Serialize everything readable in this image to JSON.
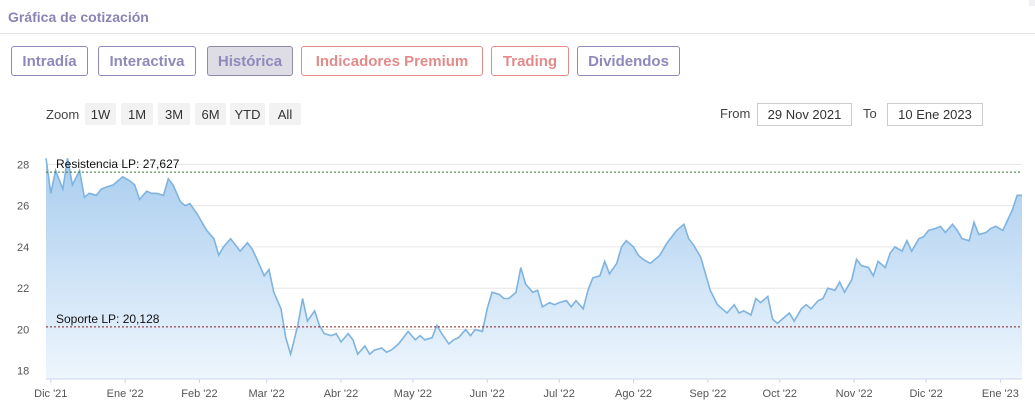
{
  "panel": {
    "title": "Gráfica de cotización"
  },
  "tabs": [
    {
      "label": "Intradía",
      "kind": "normal"
    },
    {
      "label": "Interactiva",
      "kind": "normal"
    },
    {
      "label": "Histórica",
      "kind": "active"
    },
    {
      "label": "Indicadores Premium",
      "kind": "premium"
    },
    {
      "label": "Trading",
      "kind": "premium"
    },
    {
      "label": "Dividendos",
      "kind": "normal"
    }
  ],
  "zoom": {
    "label": "Zoom",
    "options": [
      "1W",
      "1M",
      "3M",
      "6M",
      "YTD",
      "All"
    ]
  },
  "range": {
    "from_label": "From",
    "from_value": "29 Nov 2021",
    "to_label": "To",
    "to_value": "10 Ene 2023"
  },
  "colors": {
    "tab_border": "#8f89bb",
    "tab_premium": "#e38b8b",
    "series_line": "#7fb3e0",
    "area_top": "#a9cdef",
    "area_bottom": "#eef6fd",
    "resistance_line": "#2f7a2f",
    "support_line": "#8a1f1f"
  },
  "chart_data": {
    "type": "area",
    "x_tick_labels": [
      "Dic '21",
      "Ene '22",
      "Feb '22",
      "Mar '22",
      "Abr '22",
      "May '22",
      "Jun '22",
      "Jul '22",
      "Ago '22",
      "Sep '22",
      "Oct '22",
      "Nov '22",
      "Dic '22",
      "Ene '23"
    ],
    "y_tick_labels": [
      "18",
      "20",
      "22",
      "24",
      "26",
      "28"
    ],
    "ylim": [
      17.6,
      28.6
    ],
    "grid": true,
    "reference_lines": [
      {
        "label": "Resistencia LP: 27,627",
        "value": 27.627
      },
      {
        "label": "Soporte LP: 20,128",
        "value": 20.128
      }
    ],
    "series": [
      {
        "points": [
          [
            "2021-11-29",
            28.3
          ],
          [
            "2021-12-01",
            26.6
          ],
          [
            "2021-12-03",
            27.7
          ],
          [
            "2021-12-06",
            26.8
          ],
          [
            "2021-12-08",
            28.3
          ],
          [
            "2021-12-10",
            27.0
          ],
          [
            "2021-12-13",
            27.7
          ],
          [
            "2021-12-15",
            26.4
          ],
          [
            "2021-12-17",
            26.6
          ],
          [
            "2021-12-20",
            26.5
          ],
          [
            "2021-12-22",
            26.8
          ],
          [
            "2021-12-24",
            26.9
          ],
          [
            "2021-12-27",
            27.0
          ],
          [
            "2021-12-29",
            27.2
          ],
          [
            "2021-12-31",
            27.4
          ],
          [
            "2022-01-03",
            27.2
          ],
          [
            "2022-01-05",
            27.0
          ],
          [
            "2022-01-07",
            26.3
          ],
          [
            "2022-01-10",
            26.7
          ],
          [
            "2022-01-12",
            26.6
          ],
          [
            "2022-01-14",
            26.6
          ],
          [
            "2022-01-17",
            26.5
          ],
          [
            "2022-01-19",
            27.3
          ],
          [
            "2022-01-21",
            27.0
          ],
          [
            "2022-01-24",
            26.2
          ],
          [
            "2022-01-26",
            26.0
          ],
          [
            "2022-01-28",
            26.1
          ],
          [
            "2022-01-31",
            25.6
          ],
          [
            "2022-02-02",
            25.2
          ],
          [
            "2022-02-04",
            24.8
          ],
          [
            "2022-02-07",
            24.4
          ],
          [
            "2022-02-09",
            23.6
          ],
          [
            "2022-02-11",
            24.0
          ],
          [
            "2022-02-14",
            24.4
          ],
          [
            "2022-02-16",
            24.1
          ],
          [
            "2022-02-18",
            23.8
          ],
          [
            "2022-02-21",
            24.2
          ],
          [
            "2022-02-23",
            23.9
          ],
          [
            "2022-02-25",
            23.4
          ],
          [
            "2022-02-28",
            22.6
          ],
          [
            "2022-03-02",
            22.9
          ],
          [
            "2022-03-04",
            21.8
          ],
          [
            "2022-03-07",
            21.0
          ],
          [
            "2022-03-09",
            19.6
          ],
          [
            "2022-03-11",
            18.8
          ],
          [
            "2022-03-14",
            20.2
          ],
          [
            "2022-03-16",
            21.5
          ],
          [
            "2022-03-18",
            20.4
          ],
          [
            "2022-03-21",
            20.9
          ],
          [
            "2022-03-23",
            20.2
          ],
          [
            "2022-03-25",
            19.8
          ],
          [
            "2022-03-28",
            19.7
          ],
          [
            "2022-03-30",
            19.8
          ],
          [
            "2022-04-01",
            19.4
          ],
          [
            "2022-04-04",
            19.8
          ],
          [
            "2022-04-06",
            19.5
          ],
          [
            "2022-04-08",
            18.8
          ],
          [
            "2022-04-11",
            19.2
          ],
          [
            "2022-04-13",
            18.8
          ],
          [
            "2022-04-15",
            19.0
          ],
          [
            "2022-04-18",
            19.1
          ],
          [
            "2022-04-20",
            18.9
          ],
          [
            "2022-04-22",
            19.0
          ],
          [
            "2022-04-25",
            19.3
          ],
          [
            "2022-04-27",
            19.6
          ],
          [
            "2022-04-29",
            19.9
          ],
          [
            "2022-05-02",
            19.5
          ],
          [
            "2022-05-04",
            19.7
          ],
          [
            "2022-05-06",
            19.5
          ],
          [
            "2022-05-09",
            19.6
          ],
          [
            "2022-05-11",
            20.2
          ],
          [
            "2022-05-13",
            19.8
          ],
          [
            "2022-05-16",
            19.3
          ],
          [
            "2022-05-18",
            19.5
          ],
          [
            "2022-05-20",
            19.6
          ],
          [
            "2022-05-23",
            20.0
          ],
          [
            "2022-05-25",
            19.7
          ],
          [
            "2022-05-27",
            20.0
          ],
          [
            "2022-05-30",
            19.9
          ],
          [
            "2022-06-01",
            21.0
          ],
          [
            "2022-06-03",
            21.8
          ],
          [
            "2022-06-06",
            21.7
          ],
          [
            "2022-06-08",
            21.5
          ],
          [
            "2022-06-10",
            21.5
          ],
          [
            "2022-06-13",
            21.8
          ],
          [
            "2022-06-15",
            23.0
          ],
          [
            "2022-06-17",
            22.2
          ],
          [
            "2022-06-20",
            21.8
          ],
          [
            "2022-06-22",
            21.9
          ],
          [
            "2022-06-24",
            21.1
          ],
          [
            "2022-06-27",
            21.3
          ],
          [
            "2022-06-29",
            21.2
          ],
          [
            "2022-07-01",
            21.3
          ],
          [
            "2022-07-04",
            21.4
          ],
          [
            "2022-07-06",
            21.1
          ],
          [
            "2022-07-08",
            21.4
          ],
          [
            "2022-07-11",
            21.0
          ],
          [
            "2022-07-13",
            21.9
          ],
          [
            "2022-07-15",
            22.5
          ],
          [
            "2022-07-18",
            22.6
          ],
          [
            "2022-07-20",
            23.3
          ],
          [
            "2022-07-22",
            22.7
          ],
          [
            "2022-07-25",
            23.2
          ],
          [
            "2022-07-27",
            24.0
          ],
          [
            "2022-07-29",
            24.3
          ],
          [
            "2022-08-01",
            24.0
          ],
          [
            "2022-08-03",
            23.6
          ],
          [
            "2022-08-05",
            23.4
          ],
          [
            "2022-08-08",
            23.2
          ],
          [
            "2022-08-10",
            23.4
          ],
          [
            "2022-08-12",
            23.6
          ],
          [
            "2022-08-15",
            24.2
          ],
          [
            "2022-08-17",
            24.5
          ],
          [
            "2022-08-19",
            24.8
          ],
          [
            "2022-08-22",
            25.1
          ],
          [
            "2022-08-24",
            24.4
          ],
          [
            "2022-08-26",
            24.1
          ],
          [
            "2022-08-29",
            23.5
          ],
          [
            "2022-08-31",
            22.7
          ],
          [
            "2022-09-02",
            21.9
          ],
          [
            "2022-09-05",
            21.2
          ],
          [
            "2022-09-07",
            21.0
          ],
          [
            "2022-09-09",
            20.8
          ],
          [
            "2022-09-12",
            21.2
          ],
          [
            "2022-09-14",
            20.8
          ],
          [
            "2022-09-16",
            20.9
          ],
          [
            "2022-09-19",
            20.7
          ],
          [
            "2022-09-21",
            21.5
          ],
          [
            "2022-09-23",
            21.3
          ],
          [
            "2022-09-26",
            21.6
          ],
          [
            "2022-09-28",
            20.5
          ],
          [
            "2022-09-30",
            20.3
          ],
          [
            "2022-10-03",
            20.6
          ],
          [
            "2022-10-05",
            20.8
          ],
          [
            "2022-10-07",
            20.4
          ],
          [
            "2022-10-10",
            21.0
          ],
          [
            "2022-10-12",
            21.2
          ],
          [
            "2022-10-14",
            21.0
          ],
          [
            "2022-10-17",
            21.4
          ],
          [
            "2022-10-19",
            21.5
          ],
          [
            "2022-10-21",
            22.0
          ],
          [
            "2022-10-24",
            21.9
          ],
          [
            "2022-10-26",
            22.3
          ],
          [
            "2022-10-28",
            21.8
          ],
          [
            "2022-10-31",
            22.4
          ],
          [
            "2022-11-02",
            23.4
          ],
          [
            "2022-11-04",
            23.1
          ],
          [
            "2022-11-07",
            23.0
          ],
          [
            "2022-11-09",
            22.6
          ],
          [
            "2022-11-11",
            23.3
          ],
          [
            "2022-11-14",
            23.0
          ],
          [
            "2022-11-16",
            23.7
          ],
          [
            "2022-11-18",
            24.0
          ],
          [
            "2022-11-21",
            23.8
          ],
          [
            "2022-11-23",
            24.3
          ],
          [
            "2022-11-25",
            23.8
          ],
          [
            "2022-11-28",
            24.4
          ],
          [
            "2022-11-30",
            24.5
          ],
          [
            "2022-12-02",
            24.8
          ],
          [
            "2022-12-05",
            24.9
          ],
          [
            "2022-12-07",
            25.0
          ],
          [
            "2022-12-09",
            24.7
          ],
          [
            "2022-12-12",
            25.1
          ],
          [
            "2022-12-14",
            24.8
          ],
          [
            "2022-12-16",
            24.4
          ],
          [
            "2022-12-19",
            24.3
          ],
          [
            "2022-12-21",
            25.2
          ],
          [
            "2022-12-23",
            24.6
          ],
          [
            "2022-12-26",
            24.7
          ],
          [
            "2022-12-28",
            24.9
          ],
          [
            "2022-12-30",
            25.0
          ],
          [
            "2023-01-02",
            24.8
          ],
          [
            "2023-01-04",
            25.3
          ],
          [
            "2023-01-06",
            25.8
          ],
          [
            "2023-01-08",
            26.5
          ],
          [
            "2023-01-10",
            26.5
          ]
        ]
      }
    ]
  }
}
